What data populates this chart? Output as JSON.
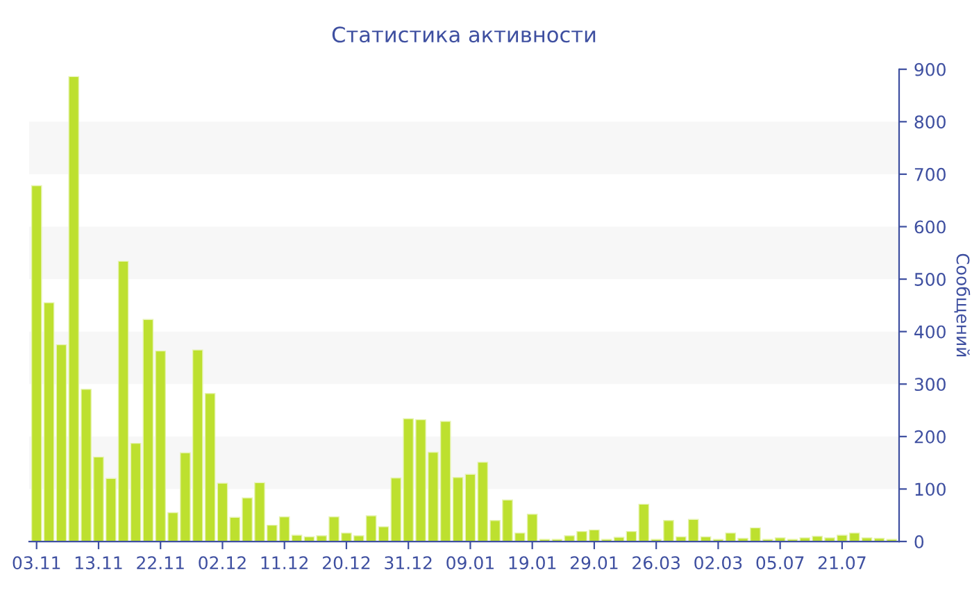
{
  "chart_data": {
    "type": "bar",
    "title": "Статистика активности",
    "ylabel": "Сообщений",
    "categories": [
      "03.11",
      null,
      null,
      null,
      null,
      "13.11",
      null,
      null,
      null,
      null,
      "22.11",
      null,
      null,
      null,
      null,
      "02.12",
      null,
      null,
      null,
      null,
      "11.12",
      null,
      null,
      null,
      null,
      "20.12",
      null,
      null,
      null,
      null,
      "31.12",
      null,
      null,
      null,
      null,
      "09.01",
      null,
      null,
      null,
      null,
      "19.01",
      null,
      null,
      null,
      null,
      "29.01",
      null,
      null,
      null,
      null,
      "26.03",
      null,
      null,
      null,
      null,
      "02.03",
      null,
      null,
      null,
      null,
      "05.07",
      null,
      null,
      null,
      null,
      "21.07",
      null,
      null,
      null,
      null
    ],
    "values": [
      678,
      455,
      375,
      886,
      290,
      161,
      120,
      534,
      187,
      423,
      363,
      55,
      169,
      365,
      282,
      111,
      46,
      83,
      112,
      31,
      47,
      12,
      9,
      11,
      47,
      16,
      11,
      49,
      28,
      121,
      234,
      232,
      170,
      229,
      122,
      128,
      151,
      40,
      79,
      16,
      52,
      4,
      4,
      11,
      19,
      22,
      4,
      8,
      19,
      71,
      4,
      40,
      9,
      42,
      9,
      4,
      16,
      6,
      26,
      4,
      7,
      4,
      7,
      10,
      7,
      12,
      16,
      7,
      6,
      4
    ],
    "color": "#bde02f",
    "ylim": [
      0,
      900
    ],
    "yticks": [
      0,
      100,
      200,
      300,
      400,
      500,
      600,
      700,
      800,
      900
    ],
    "bands": [
      {
        "axis": "y",
        "from": 100,
        "to": 200,
        "color": "#f7f7f7"
      },
      {
        "axis": "y",
        "from": 300,
        "to": 400,
        "color": "#f7f7f7"
      },
      {
        "axis": "y",
        "from": 500,
        "to": 600,
        "color": "#f7f7f7"
      },
      {
        "axis": "y",
        "from": 700,
        "to": 800,
        "color": "#f7f7f7"
      }
    ]
  }
}
